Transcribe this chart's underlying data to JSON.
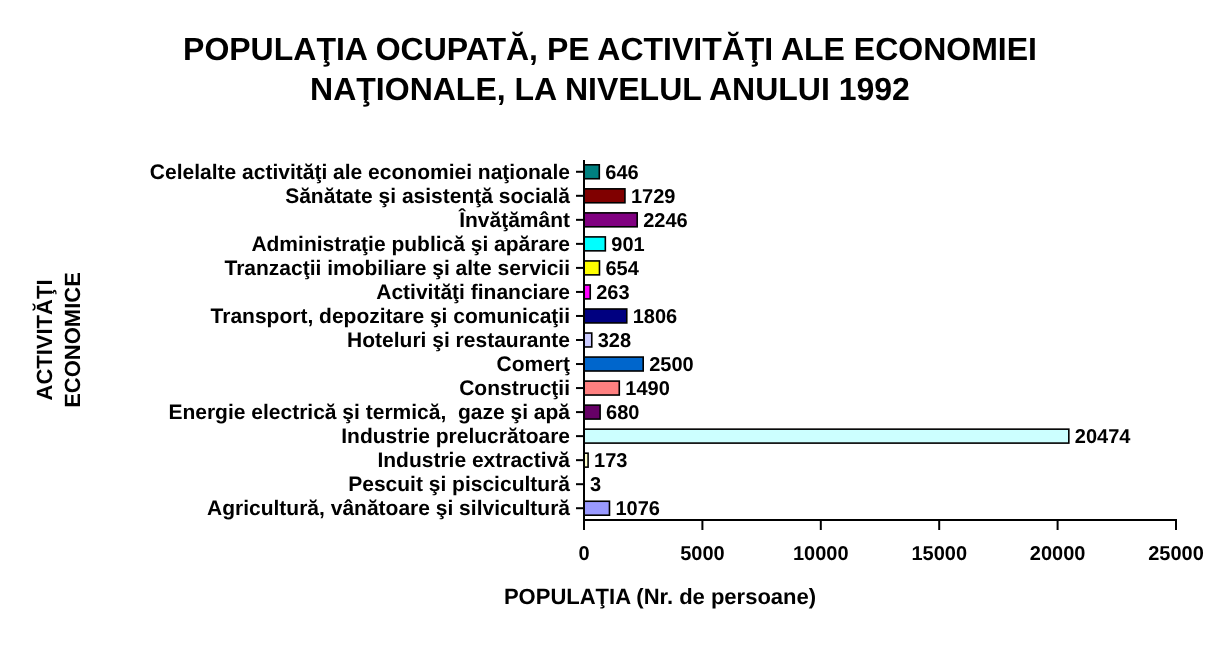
{
  "chart_data": {
    "type": "bar",
    "orientation": "horizontal",
    "title": "POPULAŢIA OCUPATĂ, PE ACTIVITĂŢI ALE ECONOMIEI NAŢIONALE, LA NIVELUL ANULUI 1992",
    "xlabel": "POPULAŢIA (Nr. de persoane)",
    "ylabel": "ACTIVITĂŢI ECONOMICE",
    "categories": [
      "Celelalte activităţi ale economiei naţionale",
      "Sănătate şi asistenţă socială",
      "Învăţământ",
      "Administraţie publică şi apărare",
      "Tranzacţii imobiliare şi alte servicii",
      "Activităţi financiare",
      "Transport, depozitare şi comunicaţii",
      "Hoteluri şi restaurante",
      "Comerţ",
      "Construcţii",
      "Energie electrică şi termică,  gaze şi apă",
      "Industrie prelucrătoare",
      "Industrie extractivă",
      "Pescuit şi piscicultură",
      "Agricultură, vânătoare şi silvicultură"
    ],
    "values": [
      646,
      1729,
      2246,
      901,
      654,
      263,
      1806,
      328,
      2500,
      1490,
      680,
      20474,
      173,
      3,
      1076
    ],
    "colors": [
      "#008080",
      "#800000",
      "#800080",
      "#00ffff",
      "#ffff00",
      "#ff00ff",
      "#000080",
      "#ccccff",
      "#0066cc",
      "#ff8080",
      "#660066",
      "#ccffff",
      "#ffffcc",
      "#99ccff",
      "#9999ff"
    ],
    "xlim": [
      0,
      25000
    ],
    "xticks": [
      0,
      5000,
      10000,
      15000,
      20000,
      25000
    ],
    "data_labels": true,
    "grid": false
  }
}
